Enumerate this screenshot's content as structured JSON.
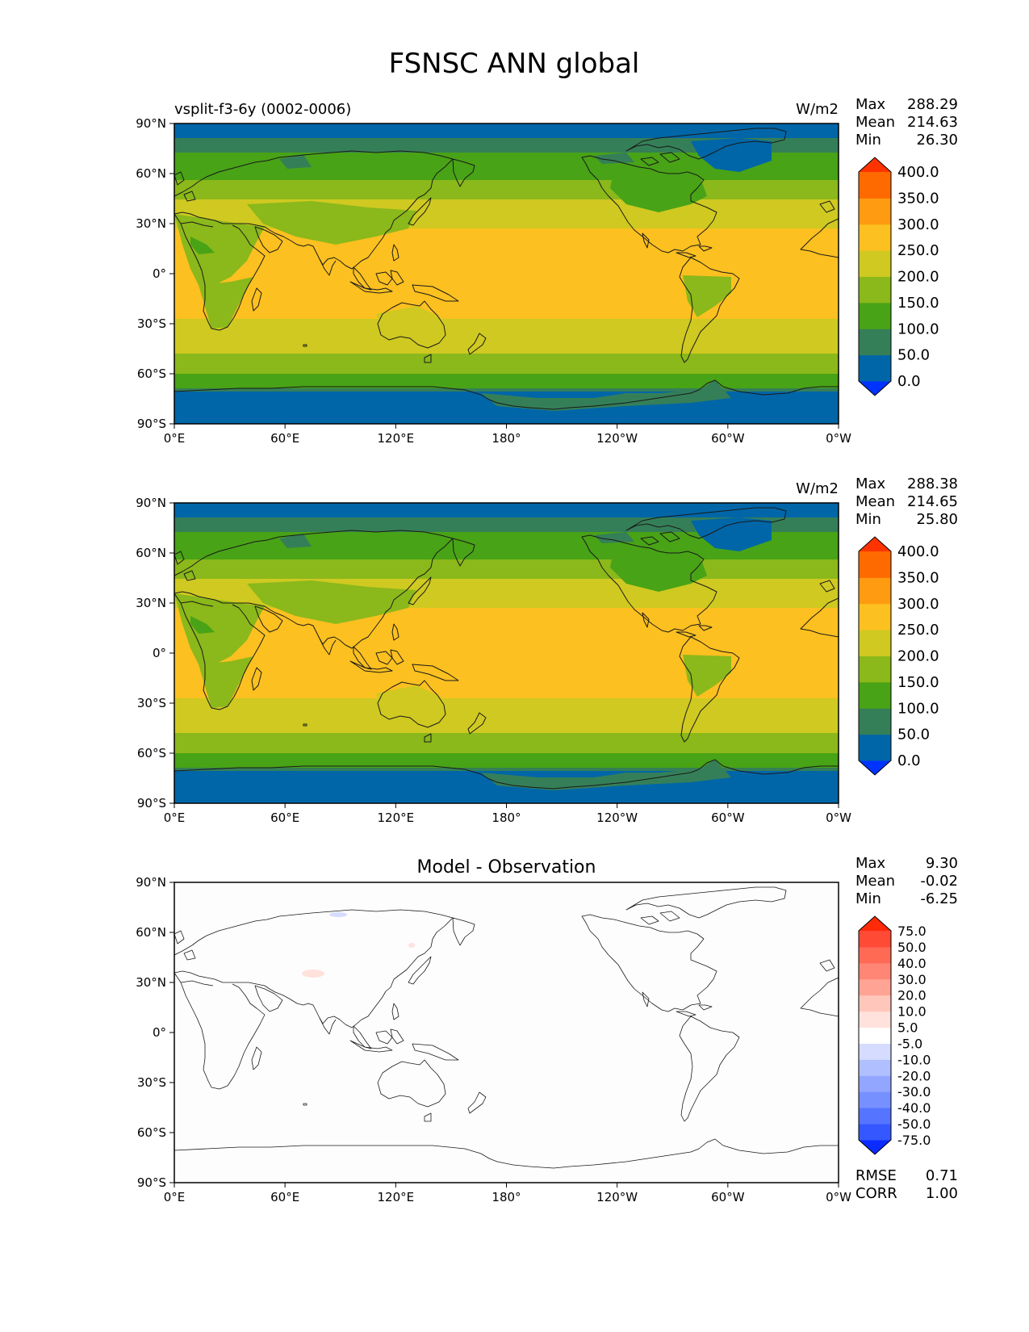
{
  "figure": {
    "title": "FSNSC ANN global"
  },
  "axis_ticks": {
    "lon": [
      "0°E",
      "60°E",
      "120°E",
      "180°",
      "120°W",
      "60°W",
      "0°W"
    ],
    "lat": [
      "90°N",
      "60°N",
      "30°N",
      "0°",
      "30°S",
      "60°S",
      "90°S"
    ]
  },
  "panels": [
    {
      "id": "test",
      "left_title": "vsplit-f3-6y (0002-0006)",
      "center_title": "",
      "units": "W/m2",
      "stats": [
        {
          "label": "Max",
          "value": "288.29"
        },
        {
          "label": "Mean",
          "value": "214.63"
        },
        {
          "label": "Min",
          "value": "26.30"
        }
      ],
      "colorbar": {
        "colors": [
          "#0033ff",
          "#0066a8",
          "#357f58",
          "#48a316",
          "#8bb81a",
          "#cfc921",
          "#fcc020",
          "#fe9b10",
          "#ff6a00",
          "#ff3300"
        ],
        "labels": [
          "0.0",
          "50.0",
          "100.0",
          "150.0",
          "200.0",
          "250.0",
          "300.0",
          "350.0",
          "400.0"
        ]
      },
      "footer": []
    },
    {
      "id": "reference",
      "left_title": "",
      "center_title": "",
      "units": "W/m2",
      "stats": [
        {
          "label": "Max",
          "value": "288.38"
        },
        {
          "label": "Mean",
          "value": "214.65"
        },
        {
          "label": "Min",
          "value": "25.80"
        }
      ],
      "colorbar": {
        "colors": [
          "#0033ff",
          "#0066a8",
          "#357f58",
          "#48a316",
          "#8bb81a",
          "#cfc921",
          "#fcc020",
          "#fe9b10",
          "#ff6a00",
          "#ff3300"
        ],
        "labels": [
          "0.0",
          "50.0",
          "100.0",
          "150.0",
          "200.0",
          "250.0",
          "300.0",
          "350.0",
          "400.0"
        ]
      },
      "footer": []
    },
    {
      "id": "difference",
      "left_title": "",
      "center_title": "Model - Observation",
      "units": "",
      "stats": [
        {
          "label": "Max",
          "value": "9.30"
        },
        {
          "label": "Mean",
          "value": "-0.02"
        },
        {
          "label": "Min",
          "value": "-6.25"
        }
      ],
      "colorbar": {
        "colors": [
          "#0b2bff",
          "#3557ff",
          "#5574ff",
          "#7690ff",
          "#92a6ff",
          "#b0bfff",
          "#d5dcff",
          "#ffffff",
          "#ffe2dc",
          "#ffc6bb",
          "#ffa495",
          "#ff8675",
          "#ff6a55",
          "#ff4a35",
          "#ff2a08"
        ],
        "labels": [
          "-75.0",
          "-50.0",
          "-40.0",
          "-30.0",
          "-20.0",
          "-10.0",
          "-5.0",
          "5.0",
          "10.0",
          "20.0",
          "30.0",
          "40.0",
          "50.0",
          "75.0"
        ]
      },
      "footer": [
        {
          "label": "RMSE",
          "value": "0.71"
        },
        {
          "label": "CORR",
          "value": "1.00"
        }
      ]
    }
  ]
}
